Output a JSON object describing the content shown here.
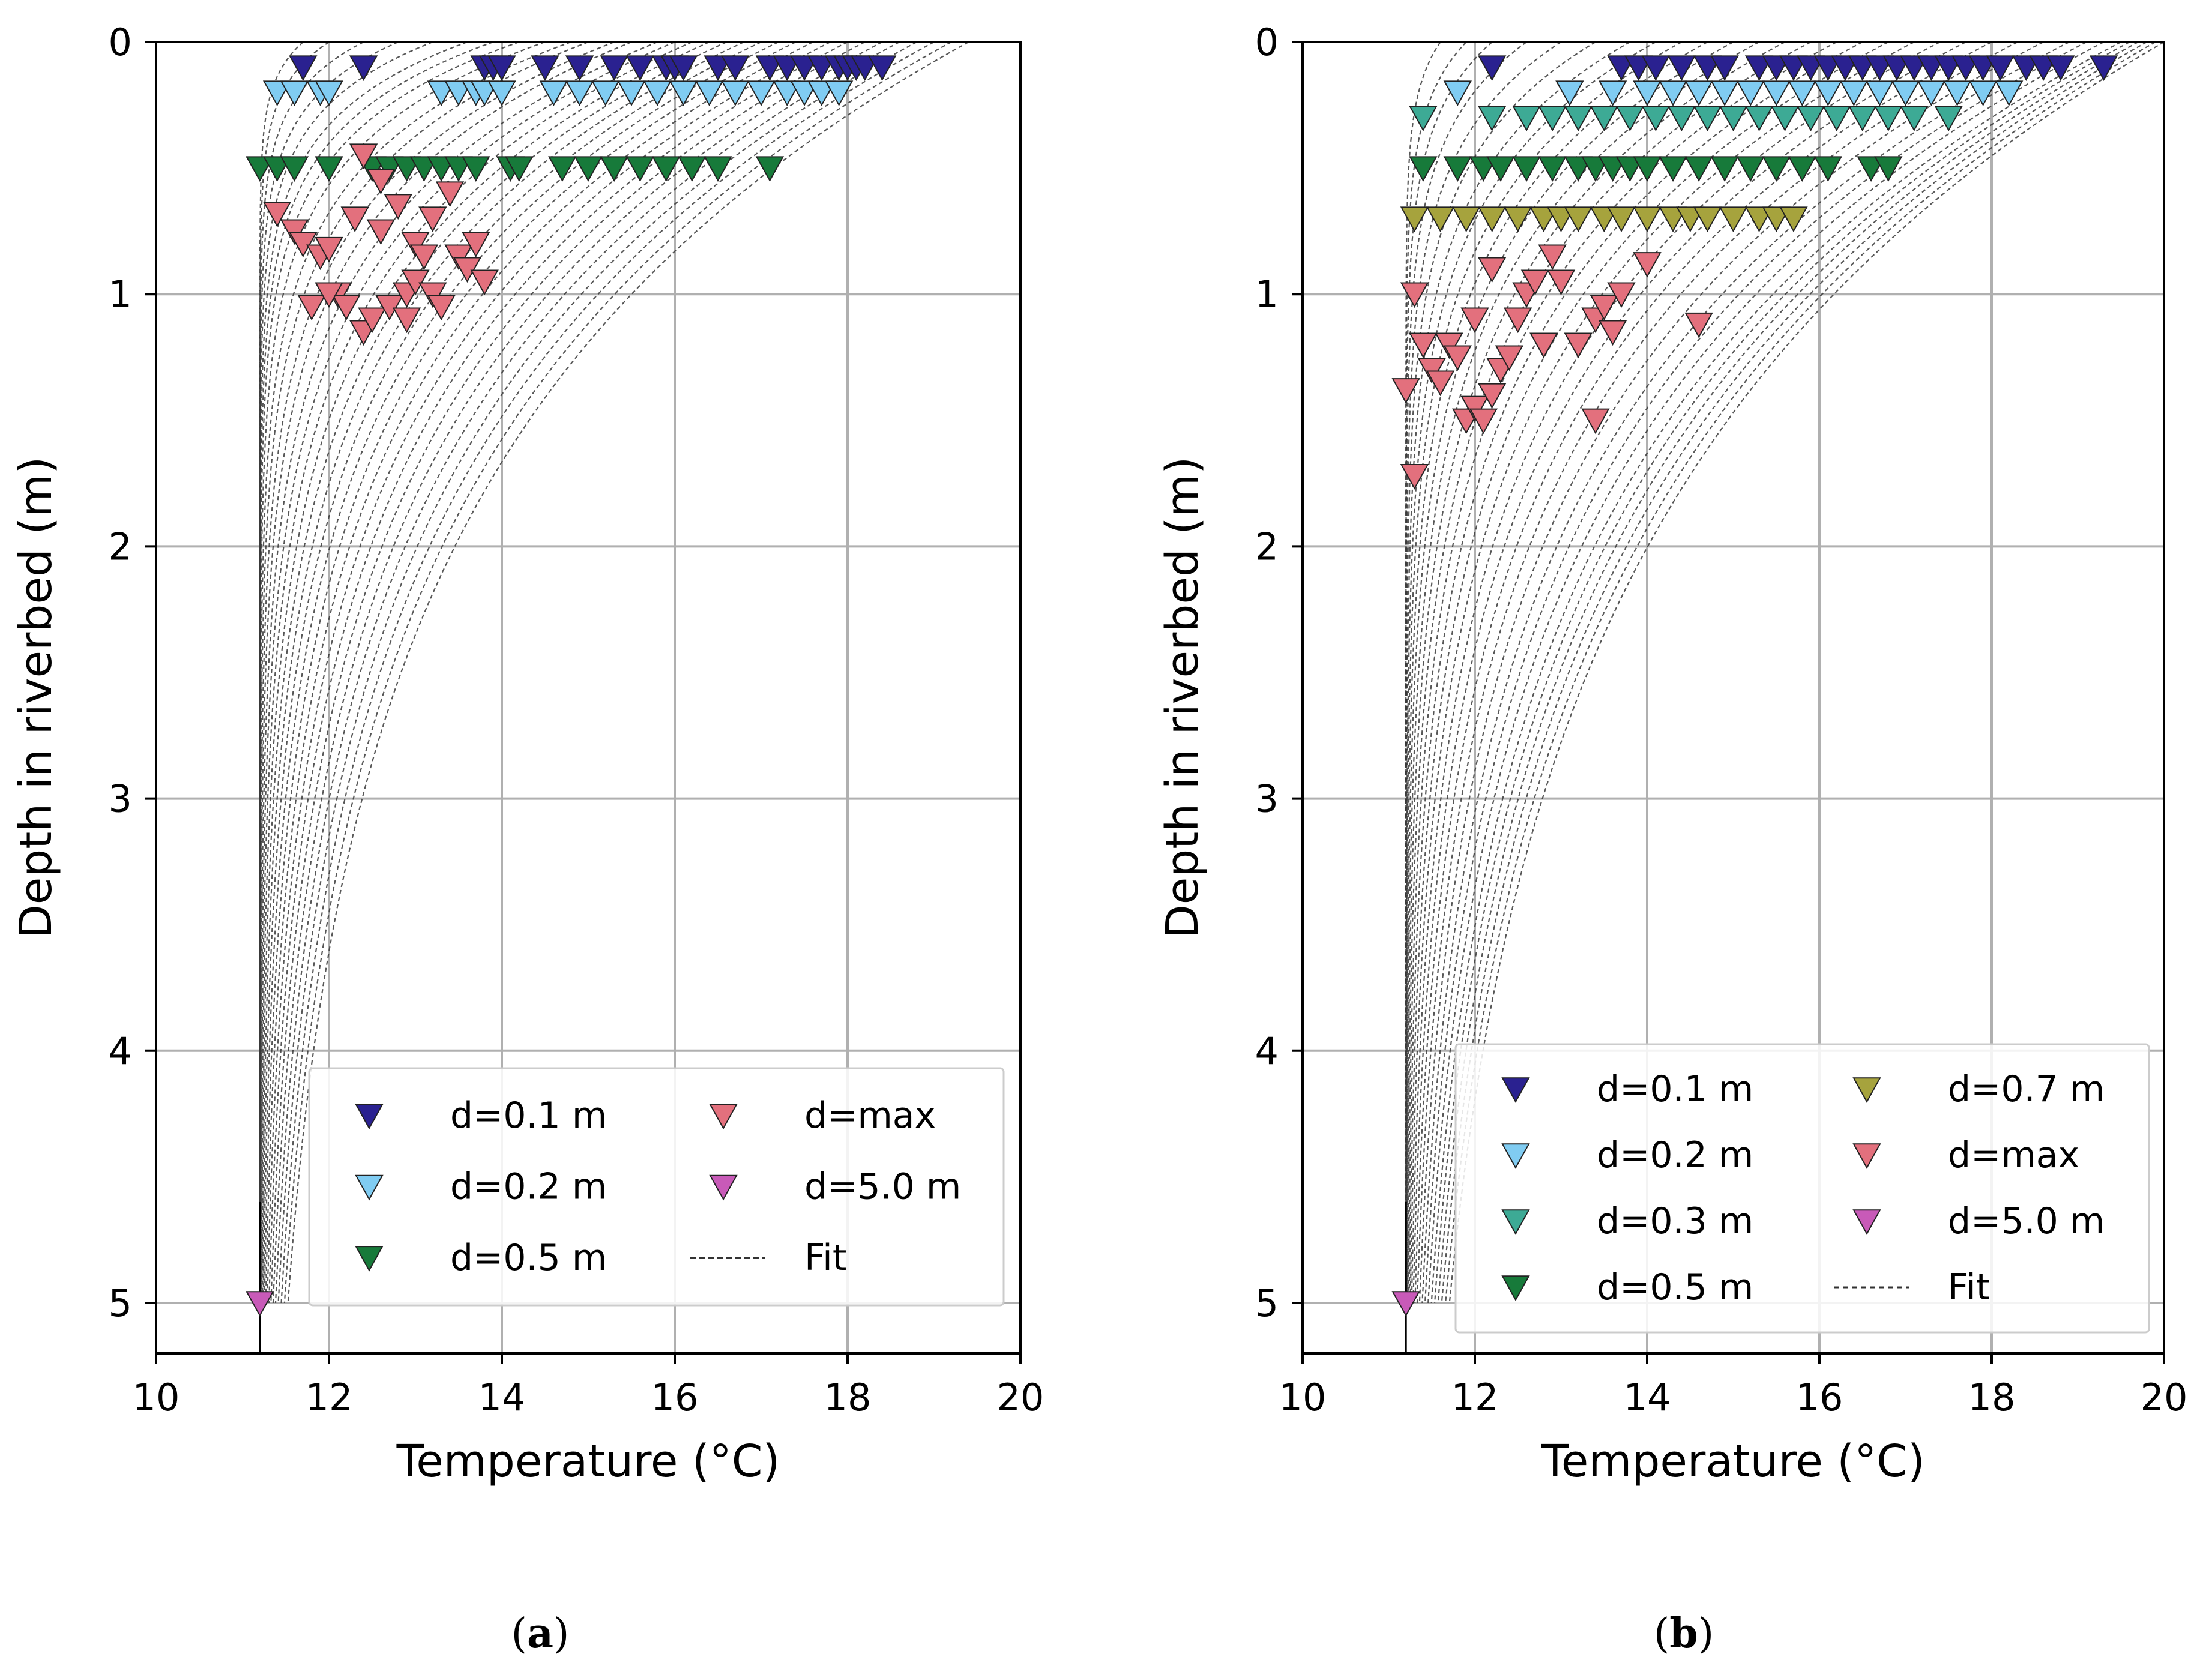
{
  "chart_data": [
    {
      "type": "scatter",
      "panel_label": "a",
      "xlabel": "Temperature (°C)",
      "ylabel": "Depth in riverbed (m)",
      "xlim": [
        10,
        20
      ],
      "ylim": [
        5.2,
        0
      ],
      "xticks": [
        "10",
        "12",
        "14",
        "16",
        "18",
        "20"
      ],
      "yticks": [
        "0",
        "1",
        "2",
        "3",
        "4",
        "5"
      ],
      "grid": true,
      "legend_position": "lower-right",
      "legend_columns": 2,
      "fit_deep_temperature": 11.2,
      "fit_surface_temperatures": [
        11.7,
        12.0,
        12.4,
        12.8,
        13.2,
        13.6,
        13.9,
        14.2,
        14.5,
        14.8,
        15.0,
        15.3,
        15.5,
        15.8,
        16.0,
        16.2,
        16.4,
        16.6,
        16.8,
        17.0,
        17.2,
        17.4,
        17.6,
        17.8,
        18.0,
        18.2,
        18.4,
        18.6,
        18.8,
        19.0,
        19.2,
        19.4
      ],
      "fit_length_scales": [
        0.15,
        0.18,
        0.21,
        0.24,
        0.27,
        0.3,
        0.33,
        0.36,
        0.4,
        0.45,
        0.5,
        0.55,
        0.6,
        0.65,
        0.7,
        0.75,
        0.8,
        0.85,
        0.9,
        0.95,
        1.0,
        1.05,
        1.1,
        1.15,
        1.2,
        1.25,
        1.3,
        1.35,
        1.4,
        1.45,
        1.5,
        1.55
      ],
      "series": [
        {
          "name": "d=0.1 m",
          "color": "#2a2190",
          "x": [
            11.7,
            12.4,
            13.8,
            13.9,
            14.0,
            14.5,
            14.9,
            15.3,
            15.6,
            15.9,
            16.0,
            16.1,
            16.5,
            16.7,
            17.1,
            17.3,
            17.5,
            17.7,
            17.9,
            18.0,
            18.1,
            18.2,
            18.4
          ],
          "y": [
            0.1,
            0.1,
            0.1,
            0.1,
            0.1,
            0.1,
            0.1,
            0.1,
            0.1,
            0.1,
            0.1,
            0.1,
            0.1,
            0.1,
            0.1,
            0.1,
            0.1,
            0.1,
            0.1,
            0.1,
            0.1,
            0.1,
            0.1
          ]
        },
        {
          "name": "d=0.2 m",
          "color": "#80ccf2",
          "x": [
            11.4,
            11.6,
            11.9,
            12.0,
            13.3,
            13.5,
            13.7,
            13.8,
            14.0,
            14.6,
            14.9,
            15.2,
            15.5,
            15.8,
            16.1,
            16.4,
            16.7,
            17.0,
            17.3,
            17.5,
            17.7,
            17.9
          ],
          "y": [
            0.2,
            0.2,
            0.2,
            0.2,
            0.2,
            0.2,
            0.2,
            0.2,
            0.2,
            0.2,
            0.2,
            0.2,
            0.2,
            0.2,
            0.2,
            0.2,
            0.2,
            0.2,
            0.2,
            0.2,
            0.2,
            0.2
          ]
        },
        {
          "name": "d=0.5 m",
          "color": "#177a3a",
          "x": [
            11.2,
            11.4,
            11.6,
            12.0,
            12.5,
            12.7,
            12.9,
            13.1,
            13.3,
            13.5,
            13.7,
            14.1,
            14.2,
            14.7,
            15.0,
            15.3,
            15.6,
            15.9,
            16.2,
            16.5,
            17.1
          ],
          "y": [
            0.5,
            0.5,
            0.5,
            0.5,
            0.5,
            0.5,
            0.5,
            0.5,
            0.5,
            0.5,
            0.5,
            0.5,
            0.5,
            0.5,
            0.5,
            0.5,
            0.5,
            0.5,
            0.5,
            0.5,
            0.5
          ]
        },
        {
          "name": "d=max",
          "color": "#e3707d",
          "x": [
            11.4,
            11.6,
            11.7,
            11.9,
            12.0,
            12.1,
            12.2,
            12.4,
            12.5,
            12.7,
            12.9,
            13.0,
            13.2,
            13.3,
            13.5,
            13.6,
            13.8,
            11.8,
            12.0,
            12.3,
            12.6,
            12.8,
            13.0,
            13.2,
            13.4,
            12.4,
            12.9,
            13.1,
            13.7,
            12.6
          ],
          "y": [
            0.68,
            0.75,
            0.8,
            0.85,
            0.82,
            1.0,
            1.05,
            1.15,
            1.1,
            1.05,
            1.0,
            0.95,
            1.0,
            1.05,
            0.85,
            0.9,
            0.95,
            1.05,
            1.0,
            0.7,
            0.75,
            0.65,
            0.8,
            0.7,
            0.6,
            0.45,
            1.1,
            0.85,
            0.8,
            0.55
          ]
        },
        {
          "name": "d=5.0 m",
          "color": "#c85ab8",
          "x": [
            11.2
          ],
          "y": [
            5.0
          ]
        },
        {
          "name": "Fit",
          "color": "#333333",
          "x": [],
          "y": []
        }
      ],
      "legend": [
        "d=0.1 m",
        "d=0.2 m",
        "d=0.5 m",
        "d=max",
        "d=5.0 m",
        "Fit"
      ]
    },
    {
      "type": "scatter",
      "panel_label": "b",
      "xlabel": "Temperature (°C)",
      "ylabel": "Depth in riverbed (m)",
      "xlim": [
        10,
        20
      ],
      "ylim": [
        5.2,
        0
      ],
      "xticks": [
        "10",
        "12",
        "14",
        "16",
        "18",
        "20"
      ],
      "yticks": [
        "0",
        "1",
        "2",
        "3",
        "4",
        "5"
      ],
      "grid": true,
      "legend_position": "lower-right",
      "legend_columns": 2,
      "fit_deep_temperature": 11.2,
      "fit_surface_temperatures": [
        11.6,
        11.9,
        12.2,
        12.6,
        13.0,
        13.4,
        13.8,
        14.1,
        14.4,
        14.7,
        15.0,
        15.3,
        15.6,
        15.9,
        16.2,
        16.5,
        16.8,
        17.1,
        17.4,
        17.7,
        18.0,
        18.3,
        18.6,
        18.9,
        19.1,
        19.3,
        19.5,
        19.6,
        19.7,
        19.8,
        19.9,
        20.0
      ],
      "fit_length_scales": [
        0.2,
        0.25,
        0.3,
        0.35,
        0.4,
        0.45,
        0.5,
        0.55,
        0.6,
        0.65,
        0.7,
        0.75,
        0.8,
        0.85,
        0.9,
        0.95,
        1.0,
        1.05,
        1.1,
        1.15,
        1.2,
        1.25,
        1.3,
        1.35,
        1.4,
        1.45,
        1.5,
        1.55,
        1.6,
        1.65,
        1.7,
        1.75
      ],
      "series": [
        {
          "name": "d=0.1 m",
          "color": "#2a2190",
          "x": [
            12.2,
            13.7,
            13.9,
            14.1,
            14.4,
            14.7,
            14.9,
            15.3,
            15.5,
            15.7,
            15.9,
            16.1,
            16.3,
            16.5,
            16.7,
            16.9,
            17.1,
            17.3,
            17.5,
            17.7,
            17.9,
            18.1,
            18.4,
            18.6,
            18.8,
            19.3
          ],
          "y": [
            0.1,
            0.1,
            0.1,
            0.1,
            0.1,
            0.1,
            0.1,
            0.1,
            0.1,
            0.1,
            0.1,
            0.1,
            0.1,
            0.1,
            0.1,
            0.1,
            0.1,
            0.1,
            0.1,
            0.1,
            0.1,
            0.1,
            0.1,
            0.1,
            0.1,
            0.1
          ]
        },
        {
          "name": "d=0.2 m",
          "color": "#80ccf2",
          "x": [
            11.8,
            13.1,
            13.6,
            14.0,
            14.3,
            14.6,
            14.9,
            15.2,
            15.5,
            15.8,
            16.1,
            16.4,
            16.7,
            17.0,
            17.3,
            17.6,
            17.9,
            18.2
          ],
          "y": [
            0.2,
            0.2,
            0.2,
            0.2,
            0.2,
            0.2,
            0.2,
            0.2,
            0.2,
            0.2,
            0.2,
            0.2,
            0.2,
            0.2,
            0.2,
            0.2,
            0.2,
            0.2
          ]
        },
        {
          "name": "d=0.3 m",
          "color": "#3daa95",
          "x": [
            11.4,
            12.2,
            12.6,
            12.9,
            13.2,
            13.5,
            13.8,
            14.1,
            14.4,
            14.7,
            15.0,
            15.3,
            15.6,
            15.9,
            16.2,
            16.5,
            16.8,
            17.1,
            17.5
          ],
          "y": [
            0.3,
            0.3,
            0.3,
            0.3,
            0.3,
            0.3,
            0.3,
            0.3,
            0.3,
            0.3,
            0.3,
            0.3,
            0.3,
            0.3,
            0.3,
            0.3,
            0.3,
            0.3,
            0.3
          ]
        },
        {
          "name": "d=0.5 m",
          "color": "#177a3a",
          "x": [
            11.4,
            11.8,
            12.1,
            12.3,
            12.6,
            12.9,
            13.2,
            13.4,
            13.6,
            13.8,
            14.0,
            14.3,
            14.6,
            14.9,
            15.2,
            15.5,
            15.8,
            16.1,
            16.6,
            16.8
          ],
          "y": [
            0.5,
            0.5,
            0.5,
            0.5,
            0.5,
            0.5,
            0.5,
            0.5,
            0.5,
            0.5,
            0.5,
            0.5,
            0.5,
            0.5,
            0.5,
            0.5,
            0.5,
            0.5,
            0.5,
            0.5
          ]
        },
        {
          "name": "d=0.7 m",
          "color": "#a6a33d",
          "x": [
            11.3,
            11.6,
            11.9,
            12.2,
            12.5,
            12.8,
            13.0,
            13.2,
            13.5,
            13.7,
            14.0,
            14.3,
            14.5,
            14.7,
            15.0,
            15.3,
            15.5,
            15.7
          ],
          "y": [
            0.7,
            0.7,
            0.7,
            0.7,
            0.7,
            0.7,
            0.7,
            0.7,
            0.7,
            0.7,
            0.7,
            0.7,
            0.7,
            0.7,
            0.7,
            0.7,
            0.7,
            0.7
          ]
        },
        {
          "name": "d=max",
          "color": "#e3707d",
          "x": [
            11.3,
            11.4,
            11.5,
            11.6,
            11.7,
            11.8,
            11.9,
            12.0,
            12.1,
            12.2,
            12.3,
            12.4,
            12.5,
            12.6,
            12.7,
            12.9,
            13.0,
            13.2,
            13.4,
            13.5,
            13.6,
            13.7,
            14.0,
            14.6,
            13.4,
            11.3,
            11.2,
            12.0,
            12.2,
            12.8
          ],
          "y": [
            1.0,
            1.2,
            1.3,
            1.35,
            1.2,
            1.25,
            1.5,
            1.45,
            1.5,
            1.4,
            1.3,
            1.25,
            1.1,
            1.0,
            0.95,
            0.85,
            0.95,
            1.2,
            1.1,
            1.05,
            1.15,
            1.0,
            0.88,
            1.12,
            1.5,
            1.72,
            1.38,
            1.1,
            0.9,
            1.2
          ]
        },
        {
          "name": "d=5.0 m",
          "color": "#c85ab8",
          "x": [
            11.2
          ],
          "y": [
            5.0
          ]
        },
        {
          "name": "Fit",
          "color": "#333333",
          "x": [],
          "y": []
        }
      ],
      "legend": [
        "d=0.1 m",
        "d=0.2 m",
        "d=0.3 m",
        "d=0.5 m",
        "d=0.7 m",
        "d=max",
        "d=5.0 m",
        "Fit"
      ]
    }
  ]
}
